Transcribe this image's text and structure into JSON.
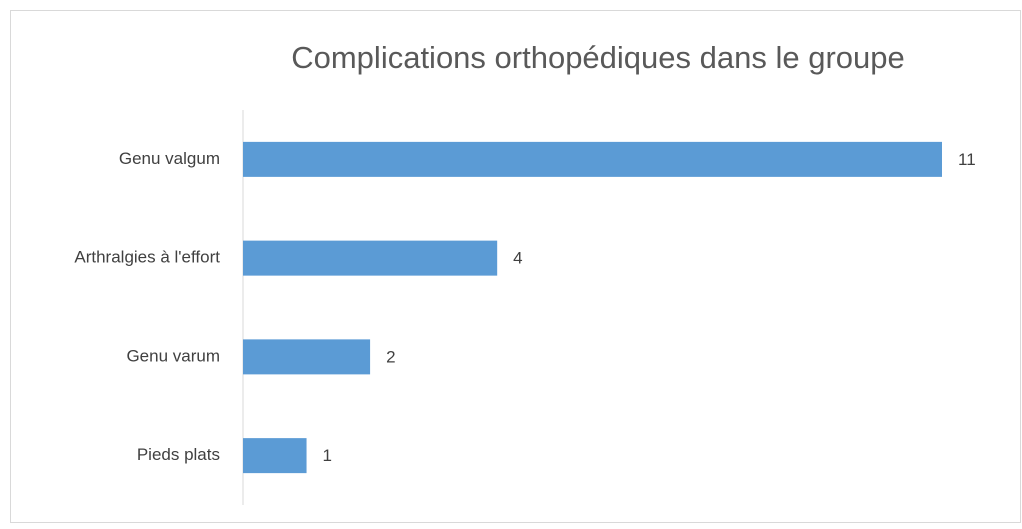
{
  "chart_data": {
    "type": "bar",
    "orientation": "horizontal",
    "title": "Complications orthopédiques dans le groupe",
    "categories": [
      "Genu valgum",
      "Arthralgies à l'effort",
      "Genu varum",
      "Pieds plats"
    ],
    "values": [
      11,
      4,
      2,
      1
    ],
    "color": "#5b9bd5"
  }
}
